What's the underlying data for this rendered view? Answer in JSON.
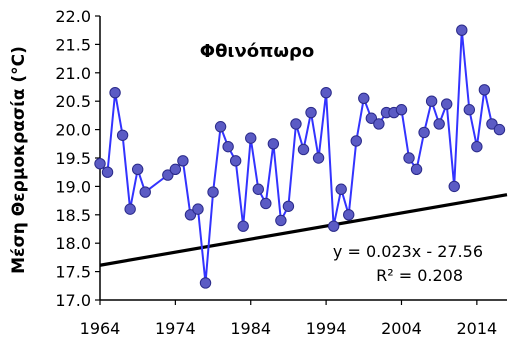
{
  "chart_data": {
    "type": "line",
    "title": "Φθινόπωρο",
    "ylabel": "Μέση Θερμοκρασία (°C)",
    "xlabel": "",
    "xlim": [
      1964,
      2018
    ],
    "ylim": [
      17.0,
      22.0
    ],
    "x_ticks": [
      "1964",
      "1974",
      "1984",
      "1994",
      "2004",
      "2014"
    ],
    "y_ticks": [
      "17.0",
      "17.5",
      "18.0",
      "18.5",
      "19.0",
      "19.5",
      "20.0",
      "20.5",
      "21.0",
      "21.5",
      "22.0"
    ],
    "grid": false,
    "series": [
      {
        "color": "#3333ff",
        "marker_color": "#5b5bc4",
        "x": [
          1964,
          1965,
          1966,
          1967,
          1968,
          1969,
          1970,
          1973,
          1974,
          1975,
          1976,
          1977,
          1978,
          1979,
          1980,
          1981,
          1982,
          1983,
          1984,
          1985,
          1986,
          1987,
          1988,
          1989,
          1990,
          1991,
          1992,
          1993,
          1994,
          1995,
          1996,
          1997,
          1998,
          1999,
          2000,
          2001,
          2002,
          2003,
          2004,
          2005,
          2006,
          2007,
          2008,
          2009,
          2010,
          2011,
          2012,
          2013,
          2014,
          2015,
          2016,
          2017
        ],
        "values": [
          19.4,
          19.25,
          20.65,
          19.9,
          18.6,
          19.3,
          18.9,
          19.2,
          19.3,
          19.45,
          18.5,
          18.6,
          17.3,
          18.9,
          20.05,
          19.7,
          19.45,
          18.3,
          19.85,
          18.95,
          18.7,
          19.75,
          18.4,
          18.65,
          20.1,
          19.65,
          20.3,
          19.5,
          20.65,
          18.3,
          18.95,
          18.5,
          19.8,
          20.55,
          20.2,
          20.1,
          20.3,
          20.3,
          20.35,
          19.5,
          19.3,
          19.95,
          20.5,
          20.1,
          20.45,
          19.0,
          21.75,
          20.35,
          19.7,
          20.7,
          20.1,
          20.0
        ]
      }
    ],
    "trendline": {
      "color": "#000000",
      "slope": 0.023,
      "intercept": -27.56,
      "equation": "y = 0.023x - 27.56",
      "r_squared": "R² = 0.208"
    }
  }
}
